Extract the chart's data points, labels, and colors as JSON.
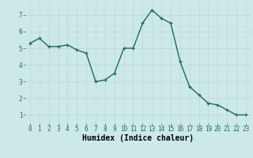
{
  "x": [
    0,
    1,
    2,
    3,
    4,
    5,
    6,
    7,
    8,
    9,
    10,
    11,
    12,
    13,
    14,
    15,
    16,
    17,
    18,
    19,
    20,
    21,
    22,
    23
  ],
  "y": [
    5.3,
    5.6,
    5.1,
    5.1,
    5.2,
    4.9,
    4.7,
    3.0,
    3.1,
    3.5,
    5.0,
    5.0,
    6.5,
    7.3,
    6.8,
    6.5,
    4.2,
    2.7,
    2.2,
    1.7,
    1.6,
    1.3,
    1.0,
    1.0
  ],
  "line_color": "#1a6b5e",
  "marker": "+",
  "marker_size": 3,
  "bg_color": "#cce9e7",
  "grid_color": "#b8d8d5",
  "xlabel": "Humidex (Indice chaleur)",
  "xlim": [
    -0.5,
    23.5
  ],
  "ylim": [
    0.5,
    7.8
  ],
  "yticks": [
    1,
    2,
    3,
    4,
    5,
    6,
    7
  ],
  "xticks": [
    0,
    1,
    2,
    3,
    4,
    5,
    6,
    7,
    8,
    9,
    10,
    11,
    12,
    13,
    14,
    15,
    16,
    17,
    18,
    19,
    20,
    21,
    22,
    23
  ],
  "tick_fontsize": 5.5,
  "xlabel_fontsize": 7,
  "linewidth": 1.0
}
